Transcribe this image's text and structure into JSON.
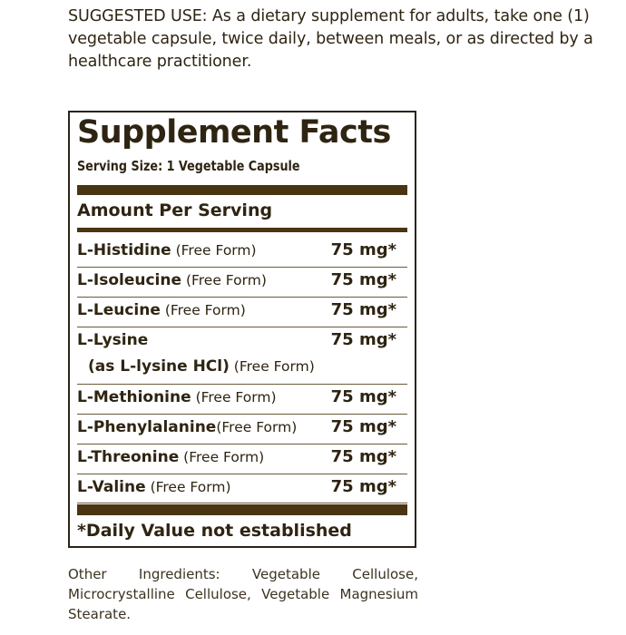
{
  "suggested_use": {
    "label": "SUGGESTED USE:",
    "text": " As a dietary supplement for adults, take one (1) vegetable capsule, twice daily, between meals, or as directed by a healthcare practitioner."
  },
  "facts": {
    "title": "Supplement Facts",
    "serving_size": "Serving Size: 1 Vegetable Capsule",
    "amount_header": "Amount Per Serving",
    "rows": [
      {
        "name": "L-Histidine",
        "form": " (Free Form)",
        "amount": "75 mg*"
      },
      {
        "name": "L-Isoleucine",
        "form": " (Free Form)",
        "amount": "75 mg*"
      },
      {
        "name": "L-Leucine",
        "form": " (Free Form)",
        "amount": "75 mg*"
      },
      {
        "name": "L-Lysine",
        "sub": "(as L-lysine HCl)",
        "form": " (Free Form)",
        "amount": "75 mg*"
      },
      {
        "name": "L-Methionine",
        "form": " (Free Form)",
        "amount": "75 mg*"
      },
      {
        "name": "L-Phenylalanine",
        "form": "(Free Form)",
        "amount": "75 mg*"
      },
      {
        "name": "L-Threonine",
        "form": " (Free Form)",
        "amount": "75 mg*"
      },
      {
        "name": "L-Valine",
        "form": " (Free Form)",
        "amount": "75 mg*"
      }
    ],
    "footnote": "*Daily Value not established"
  },
  "other_ingredients": "Other Ingredients: Vegetable Cellulose, Microcrystalline Cellulose, Vegetable Magnesium Stearate.",
  "colors": {
    "text": "#2e2412",
    "bar": "#4a3512"
  }
}
